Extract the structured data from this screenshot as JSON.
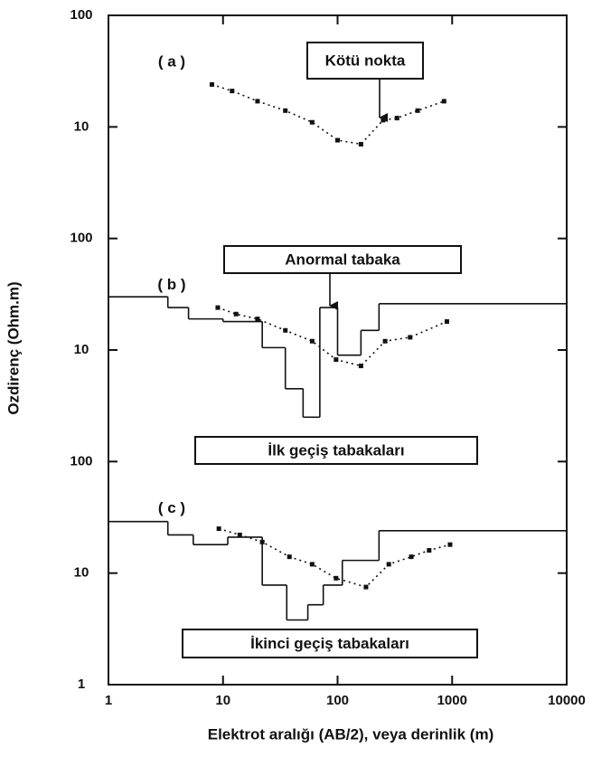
{
  "chart_data": {
    "type": "line",
    "xlabel": "Elektrot aralığı (AB/2), veya derinlik (m)",
    "ylabel": "Ozdirenç  (Ohm.m)",
    "xscale": "log",
    "yscale": "log",
    "xlim": [
      1,
      10000
    ],
    "xticks": [
      1,
      10,
      100,
      1000,
      10000
    ],
    "panels": [
      {
        "label": "( a )",
        "ylim": [
          1,
          100
        ],
        "yticks": [
          10,
          100
        ],
        "curve": {
          "x": [
            8,
            12,
            20,
            35,
            60,
            100,
            160,
            250,
            330,
            500,
            850
          ],
          "values": [
            24,
            21,
            17,
            14,
            11,
            7.6,
            7,
            11.5,
            12,
            14,
            17
          ]
        },
        "annotation": "Kötü nokta"
      },
      {
        "label": "( b )",
        "ylim": [
          1,
          100
        ],
        "yticks": [
          10,
          100
        ],
        "curve": {
          "x": [
            9,
            13,
            20,
            35,
            60,
            97,
            160,
            260,
            430,
            900
          ],
          "values": [
            24,
            21,
            19,
            15,
            12,
            8.2,
            7.2,
            12,
            13,
            18
          ]
        },
        "model": {
          "x": [
            1,
            3.3,
            5,
            10,
            22,
            35,
            50,
            70,
            100,
            160,
            230
          ],
          "values": [
            30,
            24,
            19,
            18,
            10.5,
            4.5,
            2.5,
            24,
            9,
            15,
            26
          ]
        },
        "annotation": "Anormal tabaka",
        "annotation2": "İlk geçiş tabakaları"
      },
      {
        "label": "( c )",
        "ylim": [
          1,
          100
        ],
        "yticks": [
          1,
          10,
          100
        ],
        "curve": {
          "x": [
            9.2,
            14,
            22,
            38,
            60,
            97,
            177,
            280,
            440,
            630,
            960
          ],
          "values": [
            25,
            22,
            19,
            14,
            12,
            9,
            7.5,
            12,
            14,
            16,
            18
          ]
        },
        "model": {
          "x": [
            1,
            3.3,
            5.5,
            11,
            22,
            36,
            55,
            75,
            110,
            230
          ],
          "values": [
            29,
            22,
            18,
            21,
            7.8,
            3.8,
            5.2,
            7.8,
            13,
            24
          ]
        },
        "annotation2": "İkinci geçiş tabakaları"
      }
    ]
  }
}
